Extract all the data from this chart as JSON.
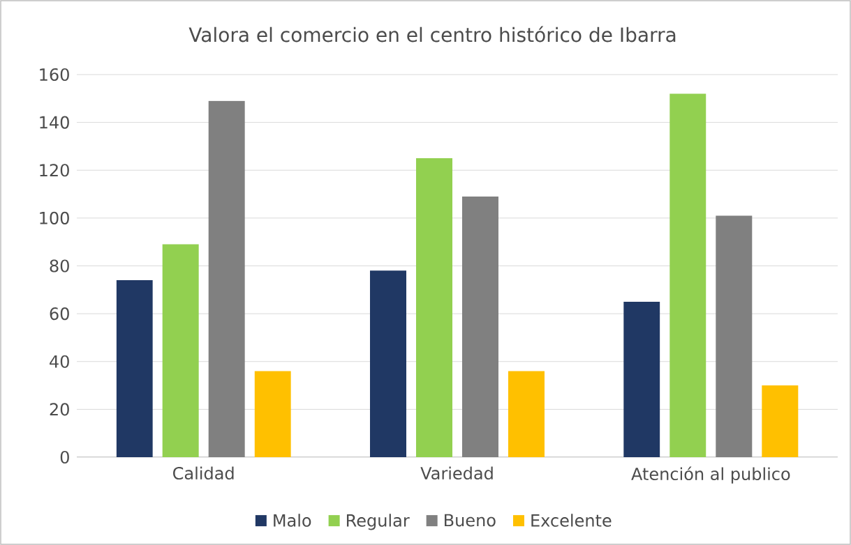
{
  "chart_data": {
    "type": "bar",
    "title": "Valora el comercio en el centro histórico de Ibarra",
    "categories": [
      "Calidad",
      "Variedad",
      "Atención al publico"
    ],
    "series": [
      {
        "name": "Malo",
        "color": "#203864",
        "values": [
          74,
          78,
          65
        ]
      },
      {
        "name": "Regular",
        "color": "#92d050",
        "values": [
          89,
          125,
          152
        ]
      },
      {
        "name": "Bueno",
        "color": "#808080",
        "values": [
          149,
          109,
          101
        ]
      },
      {
        "name": "Excelente",
        "color": "#ffc000",
        "values": [
          36,
          36,
          30
        ]
      }
    ],
    "ylim": [
      0,
      160
    ],
    "yticks": [
      0,
      20,
      40,
      60,
      80,
      100,
      120,
      140,
      160
    ],
    "grid": "y",
    "legend": "bottom"
  }
}
